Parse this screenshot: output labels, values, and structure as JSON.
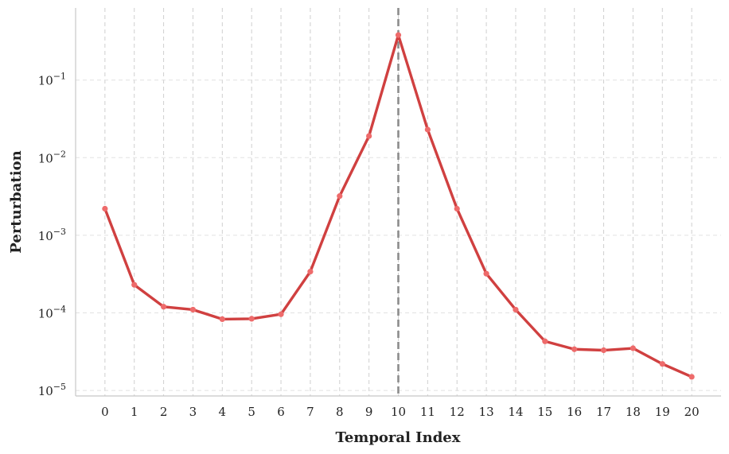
{
  "chart_data": {
    "type": "line",
    "title": "",
    "xlabel": "Temporal Index",
    "ylabel": "Perturbation",
    "yscale": "log",
    "ylim": [
      8.5e-06,
      0.85
    ],
    "xlim": [
      -1,
      21
    ],
    "x_ticks": [
      0,
      1,
      2,
      3,
      4,
      5,
      6,
      7,
      8,
      9,
      10,
      11,
      12,
      13,
      14,
      15,
      16,
      17,
      18,
      19,
      20
    ],
    "x_tick_labels": [
      "0",
      "1",
      "2",
      "3",
      "4",
      "5",
      "6",
      "7",
      "8",
      "9",
      "10",
      "11",
      "12",
      "13",
      "14",
      "15",
      "16",
      "17",
      "18",
      "19",
      "20"
    ],
    "y_ticks": [
      1e-05,
      0.0001,
      0.001,
      0.01,
      0.1
    ],
    "y_tick_labels": [
      {
        "base": "10",
        "exp": "−5"
      },
      {
        "base": "10",
        "exp": "−4"
      },
      {
        "base": "10",
        "exp": "−3"
      },
      {
        "base": "10",
        "exp": "−2"
      },
      {
        "base": "10",
        "exp": "−1"
      }
    ],
    "grid": true,
    "reference_line": {
      "x": 10,
      "style": "dashed",
      "color": "#8c8c8c"
    },
    "series": [
      {
        "color": "#d04040",
        "marker_color": "#ee6b6b",
        "x": [
          0,
          1,
          2,
          3,
          4,
          5,
          6,
          7,
          8,
          9,
          10,
          11,
          12,
          13,
          14,
          15,
          16,
          17,
          18,
          19,
          20
        ],
        "values": [
          0.0022,
          0.00023,
          0.00012,
          0.00011,
          8.3e-05,
          8.4e-05,
          9.6e-05,
          0.00034,
          0.0032,
          0.019,
          0.38,
          0.023,
          0.0022,
          0.00032,
          0.00011,
          4.3e-05,
          3.4e-05,
          3.3e-05,
          3.5e-05,
          2.2e-05,
          1.5e-05
        ]
      }
    ]
  }
}
